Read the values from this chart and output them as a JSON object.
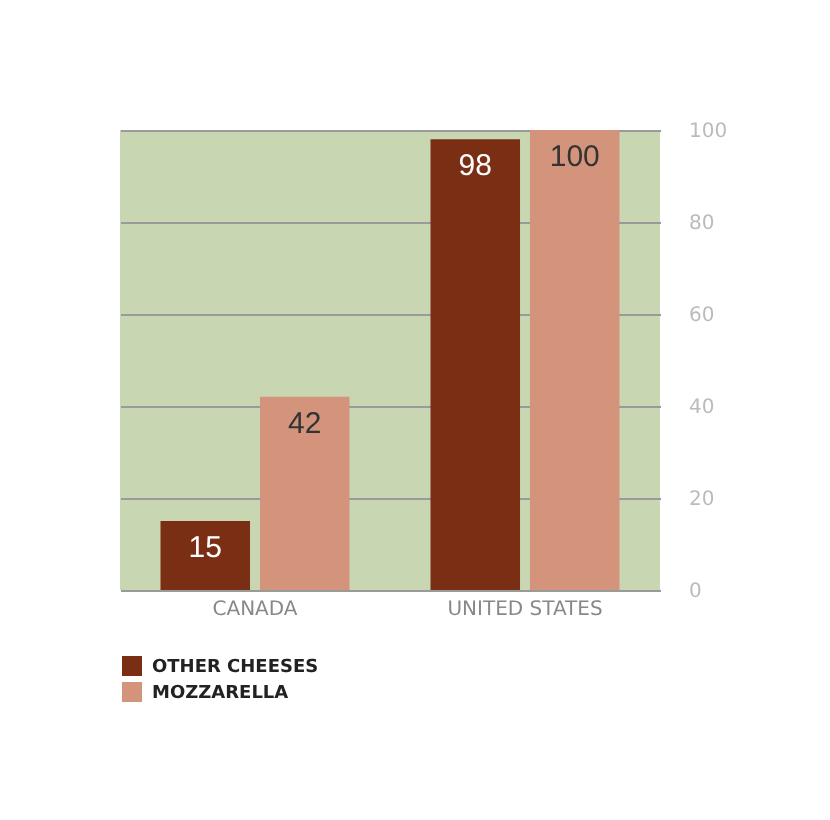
{
  "chart_data": {
    "type": "bar",
    "categories": [
      "CANADA",
      "UNITED STATES"
    ],
    "series": [
      {
        "name": "OTHER CHEESES",
        "color": "#7a2e14",
        "values": [
          15,
          98
        ]
      },
      {
        "name": "MOZZARELLA",
        "color": "#d4947c",
        "values": [
          42,
          100
        ]
      }
    ],
    "ylim": [
      0,
      100
    ],
    "yticks": [
      0,
      20,
      40,
      60,
      80,
      100
    ],
    "grid": "y",
    "legend": "bottom",
    "data_labels": true
  }
}
